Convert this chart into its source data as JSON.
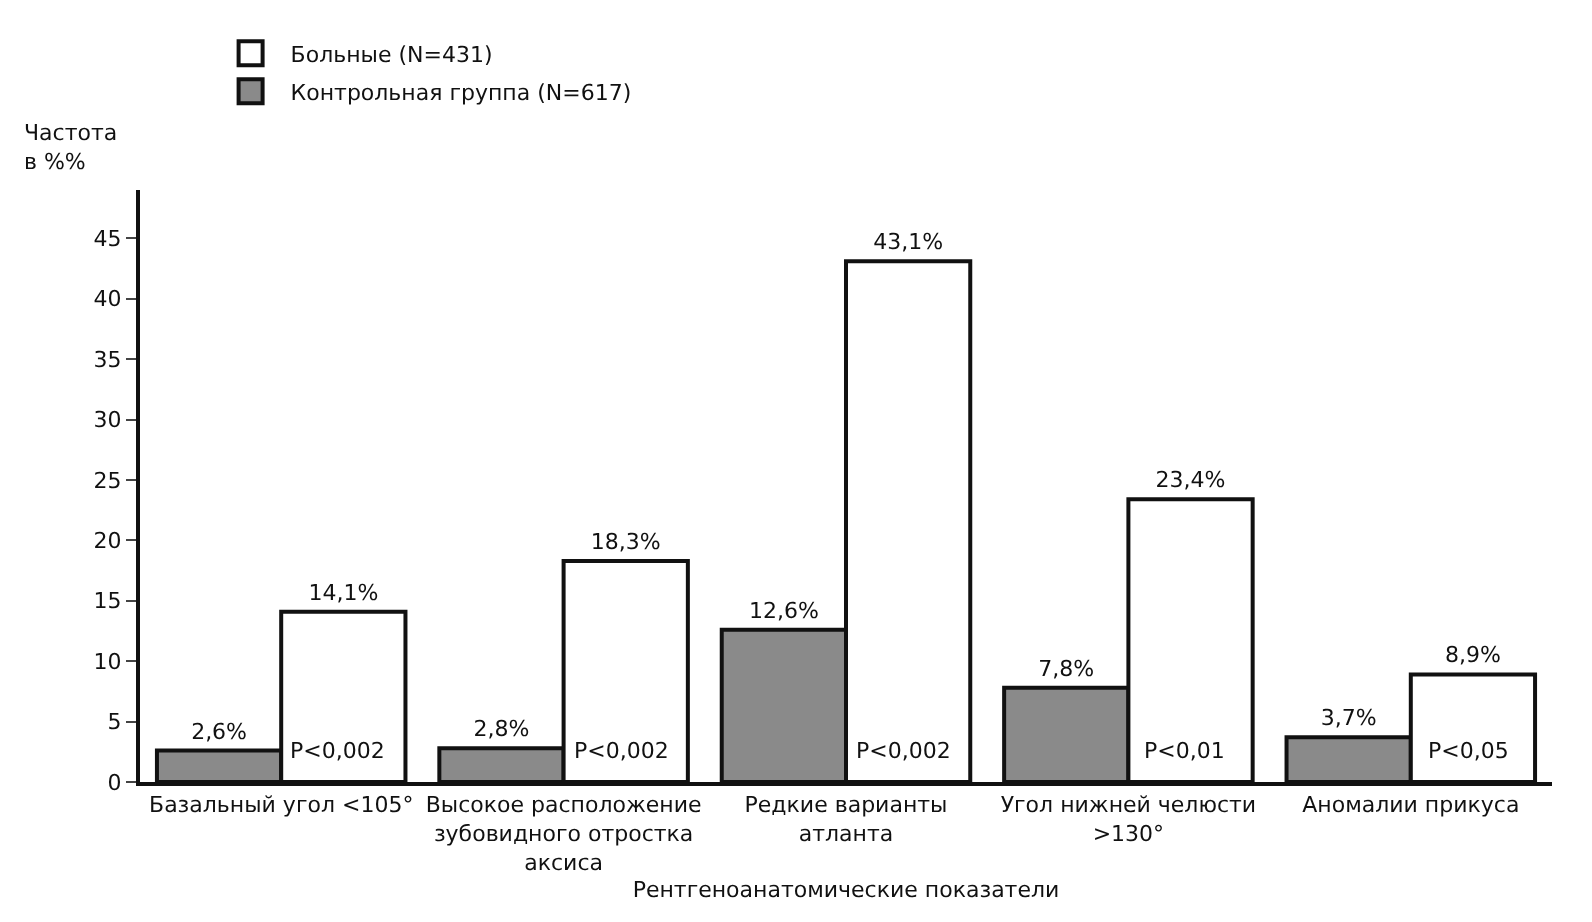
{
  "chart_data": {
    "type": "bar",
    "xlabel": "Рентгеноанатомические показатели",
    "ylabel": "Частота в %%",
    "categories": [
      "Базальный угол <105°",
      "Высокое расположение зубовидного отростка аксиса",
      "Редкие варианты атланта",
      "Угол нижней челюсти >130°",
      "Аномалии прикуса"
    ],
    "series": [
      {
        "name": "Контрольная группа (N=617)",
        "color": "#8a8a8a",
        "values": [
          2.6,
          2.8,
          12.6,
          7.8,
          3.7
        ],
        "value_labels": [
          "2,6%",
          "2,8%",
          "12,6%",
          "7,8%",
          "3,7%"
        ]
      },
      {
        "name": "Больные (N=431)",
        "color": "#ffffff",
        "values": [
          14.1,
          18.3,
          43.1,
          23.4,
          8.9
        ],
        "value_labels": [
          "14,1%",
          "18,3%",
          "43,1%",
          "23,4%",
          "8,9%"
        ]
      }
    ],
    "annotations": [
      "P<0,002",
      "P<0,002",
      "P<0,002",
      "P<0,01",
      "P<0,05"
    ],
    "ylim": [
      0,
      49
    ],
    "yticks": [
      0,
      5,
      10,
      15,
      20,
      25,
      30,
      35,
      40,
      45
    ],
    "grid": false,
    "legend": "top left"
  }
}
